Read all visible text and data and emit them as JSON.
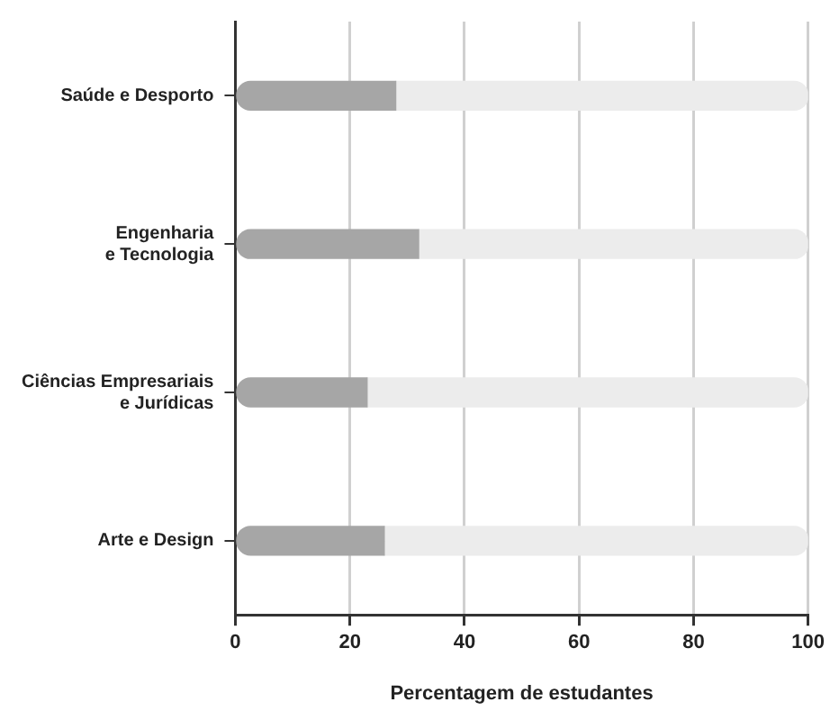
{
  "chart_data": {
    "type": "bar",
    "orientation": "horizontal",
    "stacked": true,
    "xlabel": "Percentagem de estudantes",
    "categories": [
      "Saúde e Desporto",
      "Engenharia e Tecnologia",
      "Ciências Empresariais e Jurídicas",
      "Arte e Design"
    ],
    "series": [
      {
        "color": "#a6a6a6",
        "values": [
          28,
          32,
          23,
          26
        ]
      },
      {
        "color": "#ececec",
        "values": [
          72,
          68,
          77,
          74
        ]
      }
    ],
    "xlim": [
      0,
      100
    ],
    "xticks": [
      0,
      20,
      40,
      60,
      80,
      100
    ],
    "grid": "x",
    "legend": false
  }
}
